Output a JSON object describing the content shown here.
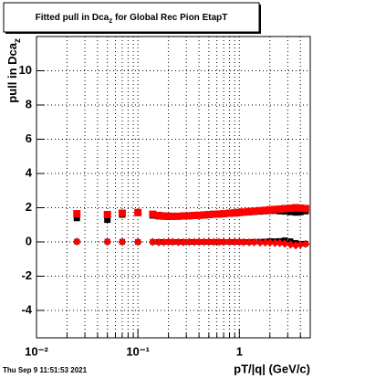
{
  "chart_data": {
    "type": "scatter",
    "title": [
      "Fitted pull in Dca",
      "z",
      " for Global Rec Pion EtapT"
    ],
    "y_label": [
      "pull in Dca",
      "z"
    ],
    "x_label": "pT/|q| (GeV/c)",
    "timestamp": "Thu Sep  9 11:51:53 2021",
    "log_x": true,
    "grid": true,
    "xlim": [
      0.01,
      5
    ],
    "ylim": [
      -5.6,
      12
    ],
    "xticks": [
      {
        "value": 0.01,
        "label": "10⁻²"
      },
      {
        "value": 0.1,
        "label": "10⁻¹"
      },
      1
    ],
    "xminorticks": [
      0.02,
      0.03,
      0.04,
      0.05,
      0.06,
      0.07,
      0.08,
      0.09,
      0.2,
      0.3,
      0.4,
      0.5,
      0.6,
      0.7,
      0.8,
      0.9,
      2,
      3,
      4,
      5
    ],
    "yticks": [
      -4,
      -2,
      0,
      2,
      4,
      6,
      8,
      10
    ],
    "x": [
      0.025,
      0.05,
      0.07,
      0.1,
      0.14,
      0.16,
      0.18,
      0.2,
      0.22,
      0.25,
      0.28,
      0.32,
      0.36,
      0.4,
      0.45,
      0.5,
      0.56,
      0.63,
      0.7,
      0.8,
      0.9,
      1.0,
      1.1,
      1.25,
      1.4,
      1.6,
      1.8,
      2.0,
      2.25,
      2.5,
      2.8,
      3.2,
      3.6,
      4.0,
      4.5
    ],
    "series": [
      {
        "color": "#000000",
        "marker": "square",
        "size": 7,
        "values": [
          1.4,
          1.3,
          1.6,
          1.7,
          1.55,
          1.5,
          1.48,
          1.47,
          1.48,
          1.49,
          1.5,
          1.51,
          1.52,
          1.54,
          1.56,
          1.58,
          1.6,
          1.61,
          1.63,
          1.65,
          1.67,
          1.7,
          1.72,
          1.74,
          1.76,
          1.78,
          1.8,
          1.82,
          1.83,
          1.8,
          1.78,
          1.75,
          1.72,
          1.75,
          1.8
        ]
      },
      {
        "color": "#ff0000",
        "marker": "square",
        "size": 8,
        "values": [
          1.65,
          1.6,
          1.68,
          1.72,
          1.62,
          1.55,
          1.52,
          1.5,
          1.5,
          1.5,
          1.52,
          1.53,
          1.55,
          1.56,
          1.58,
          1.6,
          1.62,
          1.63,
          1.65,
          1.68,
          1.7,
          1.72,
          1.75,
          1.78,
          1.8,
          1.83,
          1.85,
          1.88,
          1.9,
          1.92,
          1.95,
          1.97,
          2.0,
          1.98,
          1.95
        ]
      },
      {
        "color": "#000000",
        "marker": "square",
        "size": 6,
        "values": [
          0.02,
          0.02,
          0.01,
          0.0,
          0.0,
          0.0,
          0.0,
          0,
          0,
          0,
          0,
          0,
          0,
          0,
          0,
          0,
          0,
          0,
          0,
          0,
          0,
          0,
          0,
          0,
          0.01,
          0.02,
          0.03,
          0.05,
          0.05,
          0.06,
          0.1,
          0.05,
          -0.05,
          -0.1,
          -0.1
        ]
      },
      {
        "color": "#ff0000",
        "marker": "diamond",
        "size": 9,
        "values": [
          0.02,
          0.01,
          0.0,
          0.0,
          0.0,
          -0.02,
          -0.01,
          0,
          0,
          -0.01,
          -0.01,
          0,
          0,
          0,
          0,
          0,
          0,
          0,
          0,
          0,
          0,
          0,
          -0.01,
          -0.02,
          -0.02,
          -0.03,
          -0.03,
          -0.04,
          -0.05,
          -0.06,
          -0.1,
          -0.15,
          -0.2,
          -0.15,
          -0.12
        ]
      }
    ]
  }
}
